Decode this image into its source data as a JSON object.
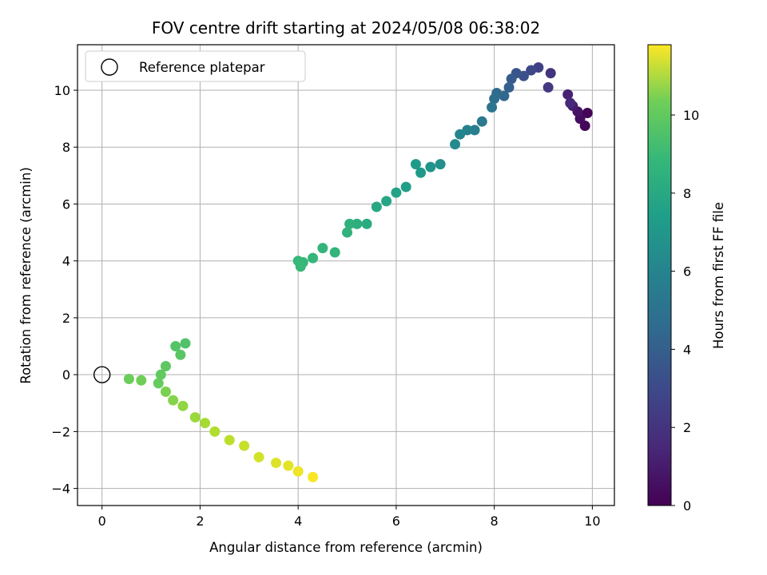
{
  "chart_data": {
    "type": "scatter",
    "title": "FOV centre drift starting at 2024/05/08 06:38:02",
    "xlabel": "Angular distance from reference (arcmin)",
    "ylabel": "Rotation from reference (arcmin)",
    "xlim": [
      -0.5,
      10.45
    ],
    "ylim": [
      -4.6,
      11.6
    ],
    "x_ticks": [
      0,
      2,
      4,
      6,
      8,
      10
    ],
    "y_ticks": [
      -4,
      -2,
      0,
      2,
      4,
      6,
      8,
      10
    ],
    "grid": true,
    "legend": {
      "placement": "top-left",
      "entries": [
        "Reference platepar"
      ]
    },
    "reference_point": {
      "x": 0,
      "y": 0,
      "marker": "open-circle"
    },
    "colorbar": {
      "label": "Hours from first FF file",
      "range": [
        0,
        11.8
      ],
      "ticks": [
        0,
        2,
        4,
        6,
        8,
        10
      ],
      "colormap": "viridis"
    },
    "series": [
      {
        "color_by": "hours",
        "points": [
          {
            "x": 9.9,
            "y": 9.2,
            "h": 0.1
          },
          {
            "x": 9.85,
            "y": 8.75,
            "h": 0.2
          },
          {
            "x": 9.75,
            "y": 9.0,
            "h": 0.4
          },
          {
            "x": 9.7,
            "y": 9.25,
            "h": 0.6
          },
          {
            "x": 9.6,
            "y": 9.45,
            "h": 0.9
          },
          {
            "x": 9.5,
            "y": 9.85,
            "h": 1.1
          },
          {
            "x": 9.55,
            "y": 9.55,
            "h": 1.3
          },
          {
            "x": 9.15,
            "y": 10.6,
            "h": 1.8
          },
          {
            "x": 9.1,
            "y": 10.1,
            "h": 2.0
          },
          {
            "x": 8.9,
            "y": 10.8,
            "h": 2.3
          },
          {
            "x": 8.75,
            "y": 10.7,
            "h": 2.6
          },
          {
            "x": 8.6,
            "y": 10.5,
            "h": 2.9
          },
          {
            "x": 8.45,
            "y": 10.6,
            "h": 3.1
          },
          {
            "x": 8.35,
            "y": 10.4,
            "h": 3.4
          },
          {
            "x": 8.3,
            "y": 10.1,
            "h": 3.6
          },
          {
            "x": 8.2,
            "y": 9.8,
            "h": 3.9
          },
          {
            "x": 8.05,
            "y": 9.9,
            "h": 4.1
          },
          {
            "x": 8.0,
            "y": 9.7,
            "h": 4.3
          },
          {
            "x": 7.95,
            "y": 9.4,
            "h": 4.6
          },
          {
            "x": 7.75,
            "y": 8.9,
            "h": 4.8
          },
          {
            "x": 7.6,
            "y": 8.6,
            "h": 5.0
          },
          {
            "x": 7.45,
            "y": 8.6,
            "h": 5.2
          },
          {
            "x": 7.3,
            "y": 8.45,
            "h": 5.4
          },
          {
            "x": 7.2,
            "y": 8.1,
            "h": 5.6
          },
          {
            "x": 6.9,
            "y": 7.4,
            "h": 5.9
          },
          {
            "x": 6.7,
            "y": 7.3,
            "h": 6.1
          },
          {
            "x": 6.5,
            "y": 7.1,
            "h": 6.3
          },
          {
            "x": 6.4,
            "y": 7.4,
            "h": 6.4
          },
          {
            "x": 6.2,
            "y": 6.6,
            "h": 6.6
          },
          {
            "x": 6.0,
            "y": 6.4,
            "h": 6.8
          },
          {
            "x": 5.8,
            "y": 6.1,
            "h": 7.0
          },
          {
            "x": 5.6,
            "y": 5.9,
            "h": 7.1
          },
          {
            "x": 5.4,
            "y": 5.3,
            "h": 7.3
          },
          {
            "x": 5.2,
            "y": 5.3,
            "h": 7.4
          },
          {
            "x": 5.05,
            "y": 5.3,
            "h": 7.5
          },
          {
            "x": 5.0,
            "y": 5.0,
            "h": 7.6
          },
          {
            "x": 4.75,
            "y": 4.3,
            "h": 7.7
          },
          {
            "x": 4.5,
            "y": 4.45,
            "h": 7.75
          },
          {
            "x": 4.3,
            "y": 4.1,
            "h": 7.8
          },
          {
            "x": 4.1,
            "y": 3.95,
            "h": 7.85
          },
          {
            "x": 4.0,
            "y": 4.0,
            "h": 7.9
          },
          {
            "x": 4.05,
            "y": 3.8,
            "h": 7.95
          },
          {
            "x": 1.7,
            "y": 1.1,
            "h": 8.5
          },
          {
            "x": 1.5,
            "y": 1.0,
            "h": 8.6
          },
          {
            "x": 1.6,
            "y": 0.7,
            "h": 8.7
          },
          {
            "x": 1.3,
            "y": 0.3,
            "h": 8.8
          },
          {
            "x": 1.2,
            "y": 0.0,
            "h": 8.9
          },
          {
            "x": 1.15,
            "y": -0.3,
            "h": 9.0
          },
          {
            "x": 0.55,
            "y": -0.15,
            "h": 9.1
          },
          {
            "x": 0.8,
            "y": -0.2,
            "h": 9.2
          },
          {
            "x": 1.3,
            "y": -0.6,
            "h": 9.4
          },
          {
            "x": 1.45,
            "y": -0.9,
            "h": 9.6
          },
          {
            "x": 1.65,
            "y": -1.1,
            "h": 9.8
          },
          {
            "x": 1.9,
            "y": -1.5,
            "h": 10.0
          },
          {
            "x": 2.1,
            "y": -1.7,
            "h": 10.2
          },
          {
            "x": 2.3,
            "y": -2.0,
            "h": 10.4
          },
          {
            "x": 2.6,
            "y": -2.3,
            "h": 10.6
          },
          {
            "x": 2.9,
            "y": -2.5,
            "h": 10.8
          },
          {
            "x": 3.2,
            "y": -2.9,
            "h": 11.0
          },
          {
            "x": 3.55,
            "y": -3.1,
            "h": 11.2
          },
          {
            "x": 3.8,
            "y": -3.2,
            "h": 11.3
          },
          {
            "x": 4.0,
            "y": -3.4,
            "h": 11.5
          },
          {
            "x": 4.3,
            "y": -3.6,
            "h": 11.7
          }
        ]
      }
    ]
  }
}
